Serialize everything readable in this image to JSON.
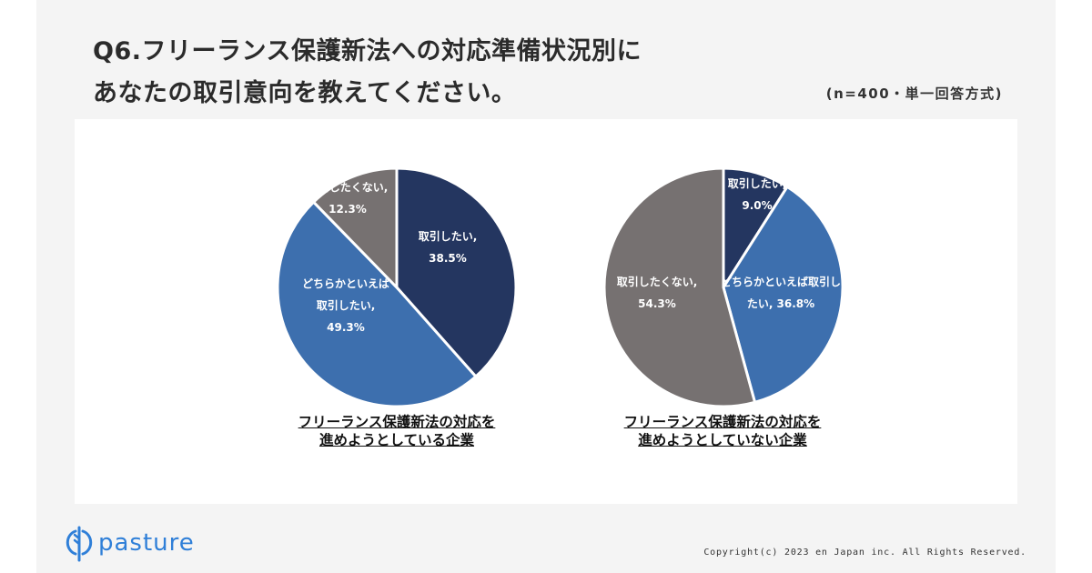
{
  "header": {
    "title_line1": "Q6.フリーランス保護新法への対応準備状況別に",
    "title_line2": "あなたの取引意向を教えてください。",
    "sample_note": "(n=400・単一回答方式)"
  },
  "chart_data": [
    {
      "type": "pie",
      "title": "フリーランス保護新法の対応を進めようとしている企業",
      "caption_line1": "フリーランス保護新法の対応を",
      "caption_line2": "進めようとしている企業",
      "slices": [
        {
          "label": "取引したい",
          "value": 38.5,
          "value_label": "38.5%",
          "color": "#243660",
          "label_lines": [
            "取引したい,",
            "38.5%"
          ]
        },
        {
          "label": "どちらかといえば取引したい",
          "value": 49.3,
          "value_label": "49.3%",
          "color": "#3d6fae",
          "label_lines": [
            "どちらかといえば",
            "取引したい,",
            "49.3%"
          ]
        },
        {
          "label": "取引したくない",
          "value": 12.3,
          "value_label": "12.3%",
          "color": "#767171",
          "label_lines": [
            "取引したくない,",
            "12.3%"
          ]
        }
      ]
    },
    {
      "type": "pie",
      "title": "フリーランス保護新法の対応を進めようとしていない企業",
      "caption_line1": "フリーランス保護新法の対応を",
      "caption_line2": "進めようとしていない企業",
      "slices": [
        {
          "label": "取引したい",
          "value": 9.0,
          "value_label": "9.0%",
          "color": "#243660",
          "label_lines": [
            "取引したい,",
            "9.0%"
          ]
        },
        {
          "label": "どちらかといえば取引したい",
          "value": 36.8,
          "value_label": "36.8%",
          "color": "#3d6fae",
          "label_lines": [
            "どちらかといえば取引し",
            "たい, 36.8%"
          ]
        },
        {
          "label": "取引したくない",
          "value": 54.3,
          "value_label": "54.3%",
          "color": "#767171",
          "label_lines": [
            "取引したくない,",
            "54.3%"
          ]
        }
      ]
    }
  ],
  "footer": {
    "brand": "pasture",
    "brand_color": "#2f7fd8",
    "copyright": "Copyright(c) 2023 en Japan inc. All Rights Reserved."
  }
}
